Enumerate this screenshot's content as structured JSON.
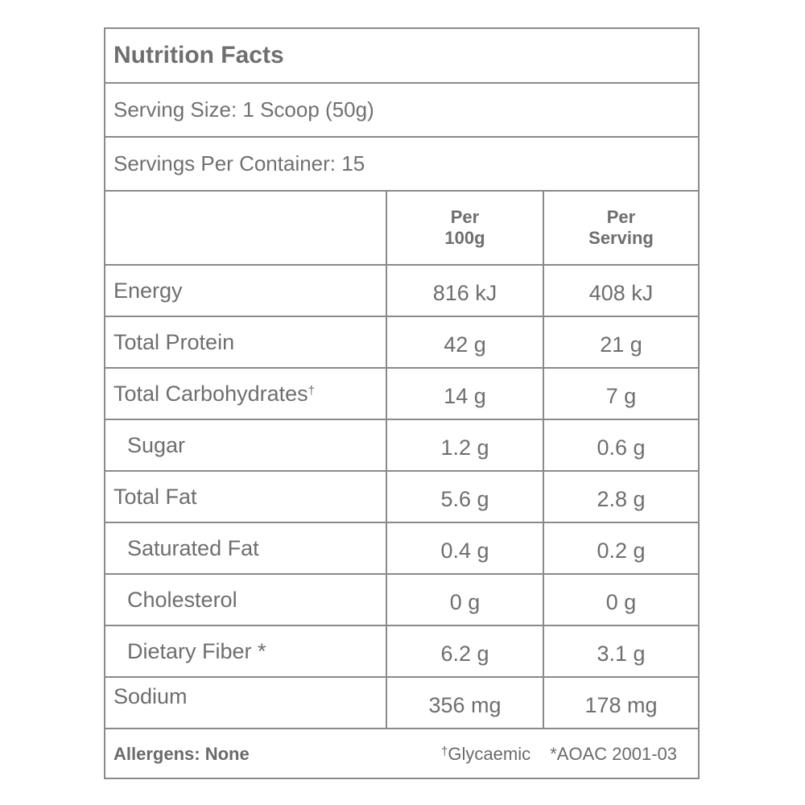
{
  "title": "Nutrition Facts",
  "serving_size": "Serving Size: 1 Scoop (50g)",
  "servings_per_container": "Servings Per Container: 15",
  "columns": {
    "per100_line1": "Per",
    "per100_line2": "100g",
    "perserv_line1": "Per",
    "perserv_line2": "Serving"
  },
  "rows": [
    {
      "label": "Energy",
      "per100": "816 kJ",
      "perserving": "408 kJ"
    },
    {
      "label": "Total Protein",
      "per100": "42 g",
      "perserving": "21 g"
    },
    {
      "label": "Total Carbohydrates",
      "label_mark": "†",
      "per100": "14 g",
      "perserving": "7 g"
    },
    {
      "label": "Sugar",
      "per100": "1.2 g",
      "perserving": "0.6 g"
    },
    {
      "label": "Total Fat",
      "per100": "5.6 g",
      "perserving": "2.8 g"
    },
    {
      "label": "Saturated Fat",
      "per100": "0.4 g",
      "perserving": "0.2 g"
    },
    {
      "label": "Cholesterol",
      "per100": "0 g",
      "perserving": "0 g"
    },
    {
      "label": "Dietary Fiber *",
      "per100": "6.2 g",
      "perserving": "3.1 g"
    },
    {
      "label": "Sodium",
      "per100": "356 mg",
      "perserving": "178 mg"
    }
  ],
  "footer": {
    "allergens": "Allergens: None",
    "glycaemic_mark": "†",
    "glycaemic": "Glycaemic",
    "aoac": "*AOAC 2001-03"
  }
}
